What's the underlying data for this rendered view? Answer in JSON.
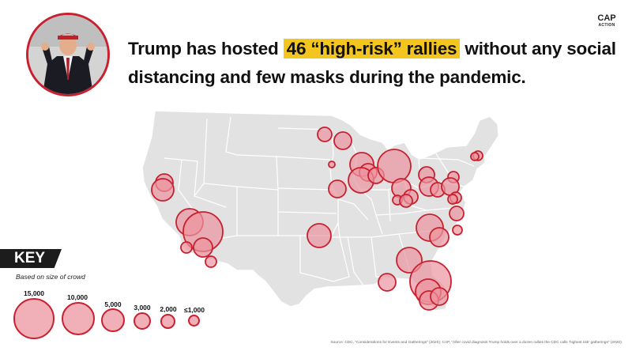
{
  "headline": {
    "before": "Trump has hosted ",
    "highlight": "46 “high-risk” rallies",
    "after": " without any social distancing and few masks during the pandemic."
  },
  "logo": {
    "line1": "CAP",
    "line2": "ACTION"
  },
  "key": {
    "title": "KEY",
    "subtitle": "Based on size of crowd",
    "items": [
      {
        "label": "15,000"
      },
      {
        "label": "10,000"
      },
      {
        "label": "5,000"
      },
      {
        "label": "3,000"
      },
      {
        "label": "2,000"
      },
      {
        "label": "≤1,000"
      }
    ]
  },
  "colors": {
    "circle_fill": "#ec94a0",
    "circle_stroke": "#c8202f",
    "map_fill": "#e2e2e2",
    "highlight": "#f2c61f",
    "key_bg": "#1c1c1c"
  },
  "source": "Source: CDC, “Considerations for Events and Gatherings” (2020); CAP, “After covid diagnosis Trump holds over a dozen rallies the CDC calls ‘highest risk’ gatherings” (2020)."
}
